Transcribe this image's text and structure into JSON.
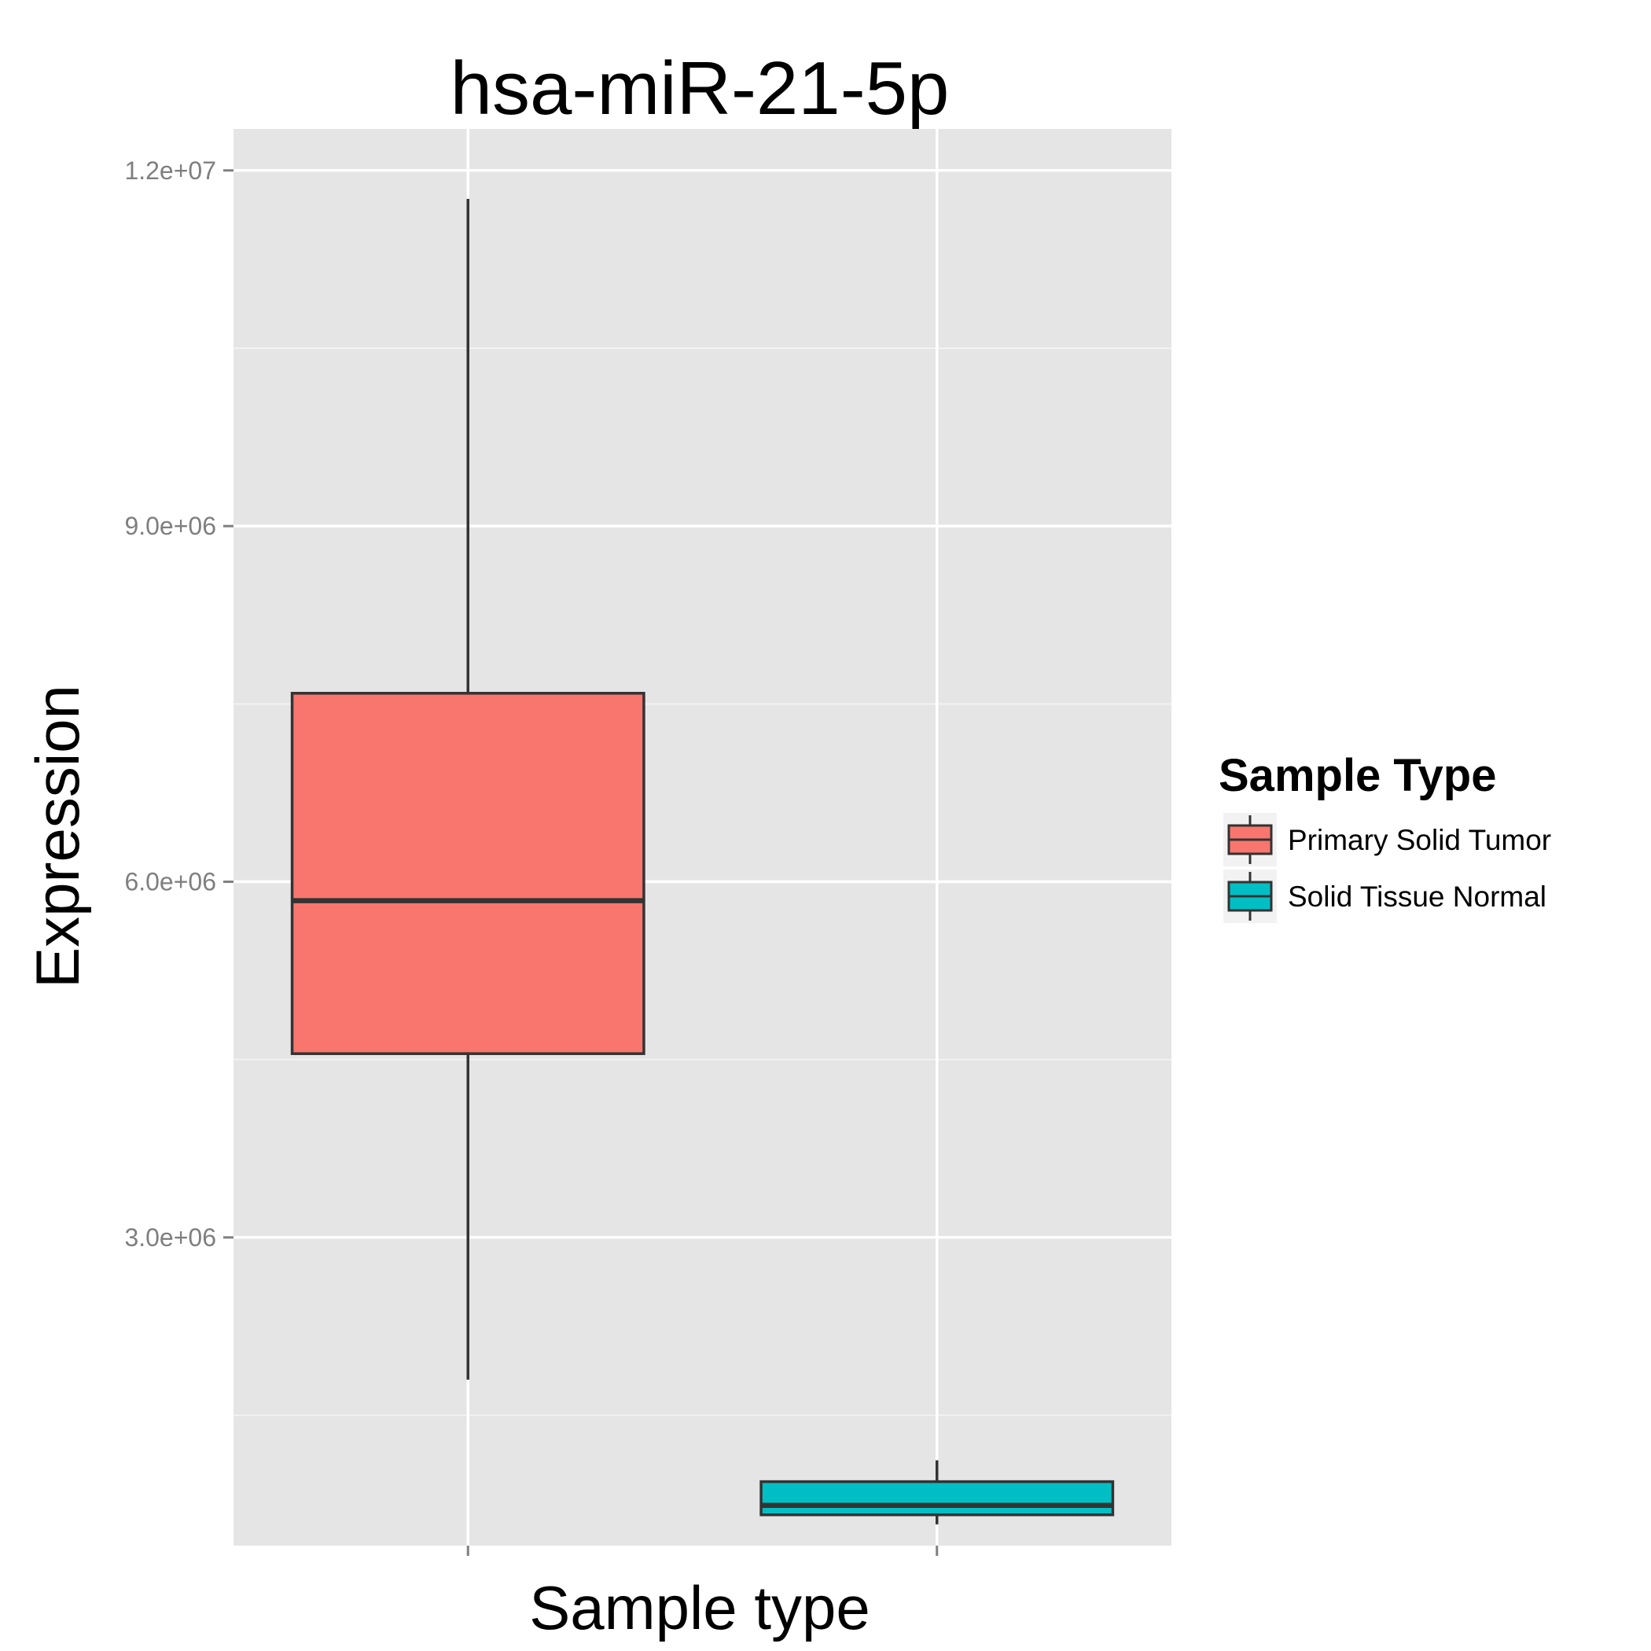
{
  "chart_data": {
    "type": "boxplot",
    "title": "hsa-miR-21-5p",
    "xlabel": "Sample type",
    "ylabel": "Expression",
    "ylim": [
      400000,
      12350000
    ],
    "yticks": [
      3000000,
      6000000,
      9000000,
      12000000
    ],
    "ytick_labels": [
      "3.0e+06",
      "6.0e+06",
      "9.0e+06",
      "1.2e+07"
    ],
    "x_tick_labels": [
      "",
      ""
    ],
    "grid": true,
    "legend": {
      "title": "Sample Type",
      "position": "right",
      "entries": [
        "Primary Solid Tumor",
        "Solid Tissue Normal"
      ]
    },
    "series": [
      {
        "name": "Primary Solid Tumor",
        "color": "#F8766D",
        "whisker_low": 1800000,
        "q1": 4550000,
        "median": 5840000,
        "q3": 7590000,
        "whisker_high": 11760000
      },
      {
        "name": "Solid Tissue Normal",
        "color": "#00BFC4",
        "whisker_low": 580000,
        "q1": 660000,
        "median": 740000,
        "q3": 940000,
        "whisker_high": 1120000
      }
    ]
  }
}
